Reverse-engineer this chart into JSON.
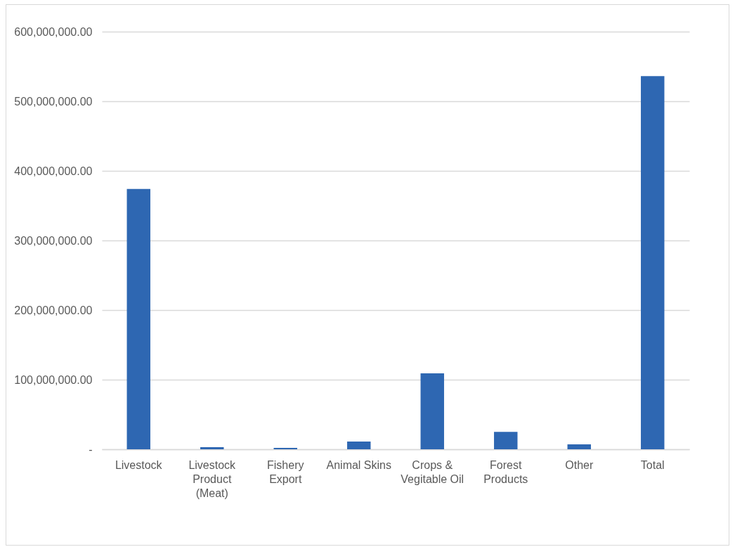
{
  "chart_data": {
    "type": "bar",
    "categories": [
      "Livestock",
      "Livestock Product (Meat)",
      "Fishery Export",
      "Animal Skins",
      "Crops & Vegitable Oil",
      "Forest Products",
      "Other",
      "Total"
    ],
    "values": [
      374000000,
      3000000,
      2000000,
      11000000,
      109000000,
      25000000,
      7000000,
      536000000
    ],
    "color": "#2e67b2",
    "ylim": [
      0,
      600000000
    ],
    "yticks": [
      {
        "value": 0,
        "label": "-"
      },
      {
        "value": 100000000,
        "label": "100,000,000.00"
      },
      {
        "value": 200000000,
        "label": "200,000,000.00"
      },
      {
        "value": 300000000,
        "label": "300,000,000.00"
      },
      {
        "value": 400000000,
        "label": "400,000,000.00"
      },
      {
        "value": 500000000,
        "label": "500,000,000.00"
      },
      {
        "value": 600000000,
        "label": "600,000,000.00"
      }
    ],
    "grid": "y"
  }
}
